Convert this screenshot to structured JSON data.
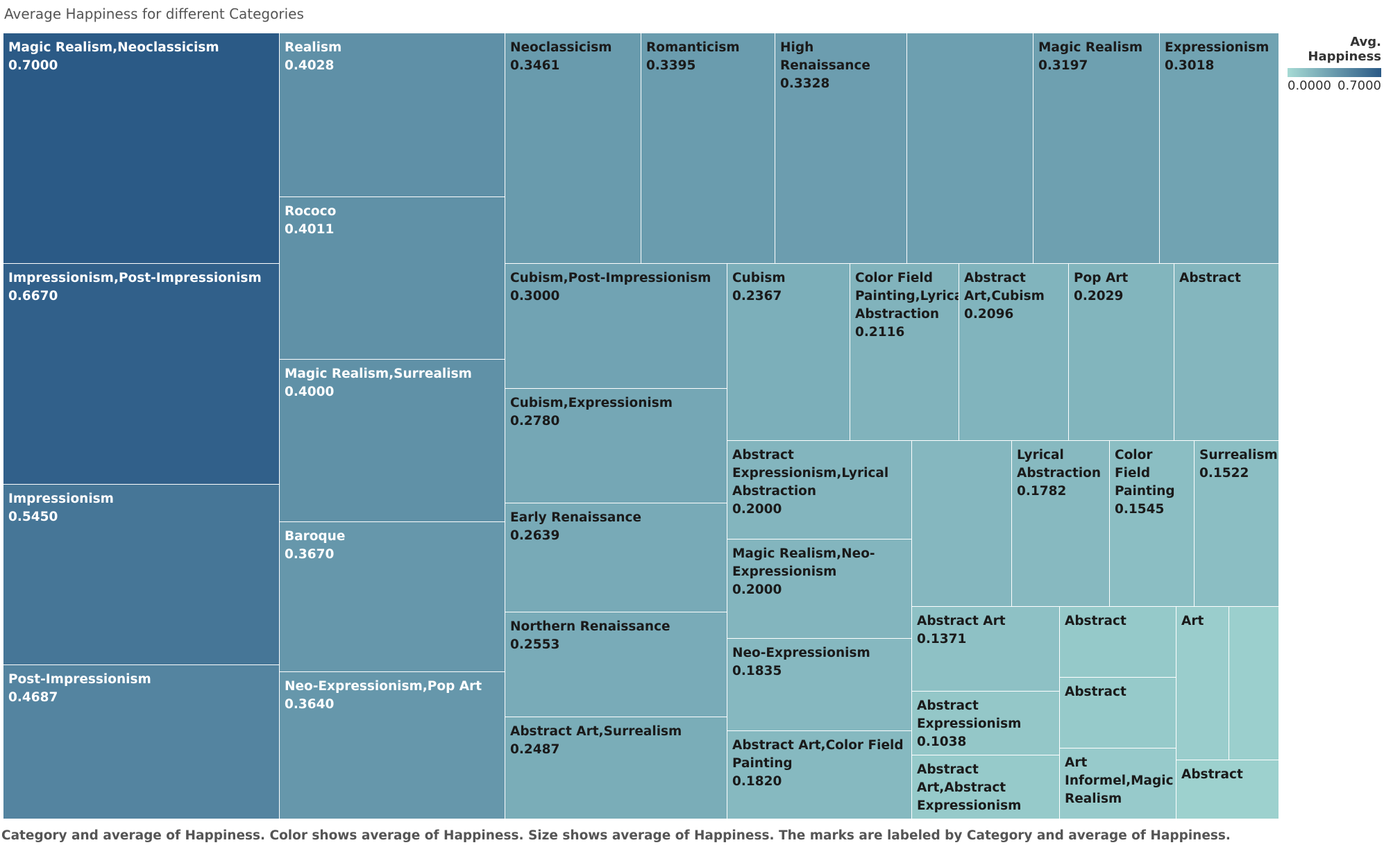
{
  "title": "Average Happiness for different Categories",
  "caption": "Category and average of Happiness.  Color shows average of Happiness.  Size shows average of Happiness.  The marks are labeled by Category and average of Happiness.",
  "legend": {
    "title": "Avg. Happiness",
    "min_label": "0.0000",
    "max_label": "0.7000"
  },
  "colors": {
    "low": "#a6dad4",
    "high": "#2b5a86"
  },
  "chart_data": {
    "type": "treemap",
    "title": "Average Happiness for different Categories",
    "color_measure": "Avg. Happiness",
    "size_measure": "Avg. Happiness",
    "color_range": [
      0.0,
      0.7
    ],
    "items": [
      {
        "category": "Magic Realism,Neoclassicism",
        "value": 0.7,
        "label": "0.7000"
      },
      {
        "category": "Impressionism,Post-Impressionism",
        "value": 0.667,
        "label": "0.6670"
      },
      {
        "category": "Impressionism",
        "value": 0.545,
        "label": "0.5450"
      },
      {
        "category": "Post-Impressionism",
        "value": 0.4687,
        "label": "0.4687"
      },
      {
        "category": "Realism",
        "value": 0.4028,
        "label": "0.4028"
      },
      {
        "category": "Rococo",
        "value": 0.4011,
        "label": "0.4011"
      },
      {
        "category": "Magic Realism,Surrealism",
        "value": 0.4,
        "label": "0.4000"
      },
      {
        "category": "Baroque",
        "value": 0.367,
        "label": "0.3670"
      },
      {
        "category": "Neo-Expressionism,Pop Art",
        "value": 0.364,
        "label": "0.3640"
      },
      {
        "category": "Neoclassicism",
        "value": 0.3461,
        "label": "0.3461"
      },
      {
        "category": "Romanticism",
        "value": 0.3395,
        "label": "0.3395"
      },
      {
        "category": "High Renaissance",
        "value": 0.3328,
        "label": "0.3328"
      },
      {
        "category": "",
        "value": 0.325,
        "label": ""
      },
      {
        "category": "Magic Realism",
        "value": 0.3197,
        "label": "0.3197"
      },
      {
        "category": "Expressionism",
        "value": 0.3018,
        "label": "0.3018"
      },
      {
        "category": "Cubism,Post-Impressionism",
        "value": 0.3,
        "label": "0.3000"
      },
      {
        "category": "Cubism,Expressionism",
        "value": 0.278,
        "label": "0.2780"
      },
      {
        "category": "Early Renaissance",
        "value": 0.2639,
        "label": "0.2639"
      },
      {
        "category": "Northern Renaissance",
        "value": 0.2553,
        "label": "0.2553"
      },
      {
        "category": "Abstract Art,Surrealism",
        "value": 0.2487,
        "label": "0.2487"
      },
      {
        "category": "Cubism",
        "value": 0.2367,
        "label": "0.2367"
      },
      {
        "category": "Color Field Painting,Lyrical Abstraction",
        "value": 0.2116,
        "label": "0.2116"
      },
      {
        "category": "Abstract Art,Cubism",
        "value": 0.2096,
        "label": "0.2096"
      },
      {
        "category": "Pop Art",
        "value": 0.2029,
        "label": "0.2029"
      },
      {
        "category": "Abstract",
        "value": 0.195,
        "label": ""
      },
      {
        "category": "Abstract Expressionism,Lyrical Abstraction",
        "value": 0.2,
        "label": "0.2000"
      },
      {
        "category": "Magic Realism,Neo-Expressionism",
        "value": 0.2,
        "label": "0.2000"
      },
      {
        "category": "Neo-Expressionism",
        "value": 0.1835,
        "label": "0.1835"
      },
      {
        "category": "Abstract Art,Color Field Painting",
        "value": 0.182,
        "label": "0.1820"
      },
      {
        "category": "",
        "value": 0.19,
        "label": ""
      },
      {
        "category": "Lyrical Abstraction",
        "value": 0.1782,
        "label": "0.1782"
      },
      {
        "category": "Color Field Painting",
        "value": 0.1545,
        "label": "0.1545"
      },
      {
        "category": "Surrealism",
        "value": 0.1522,
        "label": "0.1522"
      },
      {
        "category": "Abstract Art",
        "value": 0.1371,
        "label": "0.1371"
      },
      {
        "category": "Abstract Expressionism",
        "value": 0.1038,
        "label": "0.1038"
      },
      {
        "category": "Abstract Art,Abstract Expressionism",
        "value": 0.09,
        "label": ""
      },
      {
        "category": "Abstract",
        "value": 0.095,
        "label": ""
      },
      {
        "category": "Abstract",
        "value": 0.09,
        "label": ""
      },
      {
        "category": "Art Informel,Magic Realism",
        "value": 0.085,
        "label": ""
      },
      {
        "category": "Art",
        "value": 0.07,
        "label": ""
      },
      {
        "category": "",
        "value": 0.06,
        "label": ""
      },
      {
        "category": "Abstract",
        "value": 0.05,
        "label": ""
      }
    ]
  }
}
